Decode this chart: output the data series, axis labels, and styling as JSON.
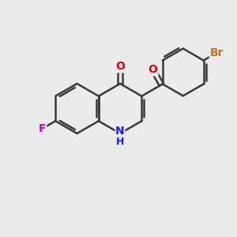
{
  "background_color": "#ebebeb",
  "bond_color": "#3a3a3a",
  "bond_width": 1.8,
  "atom_colors": {
    "O": "#e8000d",
    "N": "#1a1aff",
    "F": "#cc00cc",
    "Br": "#b87333",
    "C": "#000000",
    "H": "#000000"
  },
  "font_size": 10,
  "fig_bg": "#ebebeb"
}
